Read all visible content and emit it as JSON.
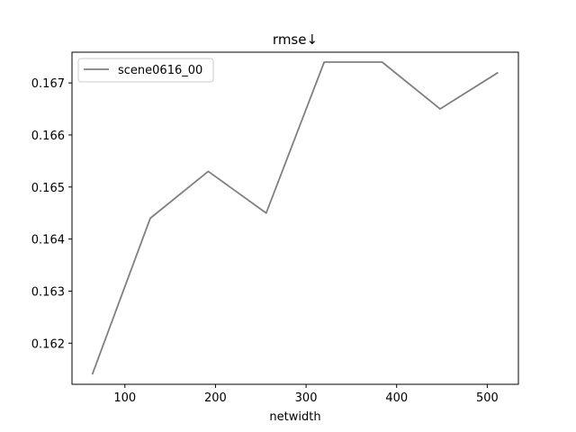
{
  "chart_data": {
    "type": "line",
    "title": "rmse↓",
    "xlabel": "netwidth",
    "ylabel": "",
    "xlim": [
      41.6,
      534.4
    ],
    "ylim": [
      0.16121,
      0.16759
    ],
    "xticks": [
      100,
      200,
      300,
      400,
      500
    ],
    "yticks": [
      0.162,
      0.163,
      0.164,
      0.165,
      0.166,
      0.167
    ],
    "x_tick_labels": [
      "100",
      "200",
      "300",
      "400",
      "500"
    ],
    "y_tick_labels": [
      "0.162",
      "0.163",
      "0.164",
      "0.165",
      "0.166",
      "0.167"
    ],
    "grid": false,
    "legend_position": "upper left",
    "series": [
      {
        "name": "scene0616_00",
        "color": "#808080",
        "x": [
          64,
          128,
          192,
          256,
          320,
          384,
          448,
          512
        ],
        "y": [
          0.1614,
          0.1644,
          0.1653,
          0.1645,
          0.1674,
          0.1674,
          0.1665,
          0.1672
        ]
      }
    ]
  }
}
